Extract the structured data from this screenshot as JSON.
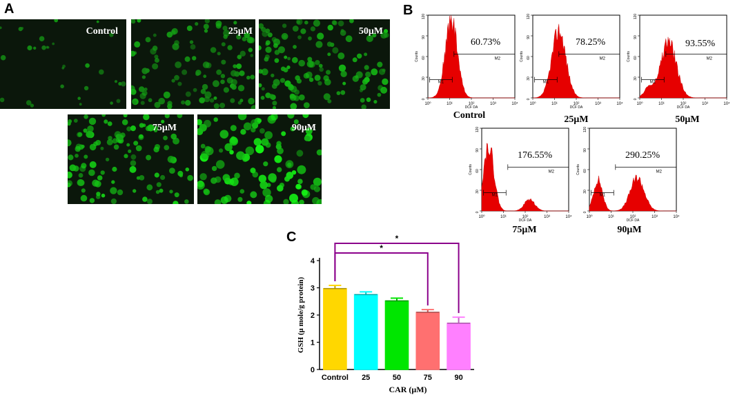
{
  "panel_a": {
    "letter": "A",
    "images": [
      {
        "label": "Control",
        "cells": 30,
        "brightness": 0.45,
        "size": 3,
        "seed": 3
      },
      {
        "label": "25μM",
        "cells": 110,
        "brightness": 0.55,
        "size": 4,
        "seed": 11
      },
      {
        "label": "50μM",
        "cells": 130,
        "brightness": 0.65,
        "size": 4,
        "seed": 17
      },
      {
        "label": "75μM",
        "cells": 120,
        "brightness": 0.8,
        "size": 4,
        "seed": 23
      },
      {
        "label": "90μM",
        "cells": 110,
        "brightness": 1.0,
        "size": 5,
        "seed": 31
      }
    ]
  },
  "panel_b": {
    "letter": "B",
    "axis_label_y": "Counts",
    "axis_label_x": "DCF DA",
    "gate_m1": "M1",
    "gate_m2": "M2",
    "y_ticks": [
      "0",
      "30",
      "60",
      "90",
      "120"
    ],
    "x_ticks": [
      "10⁰",
      "10¹",
      "10²",
      "10³",
      "10⁴"
    ],
    "histograms": [
      {
        "caption": "Control",
        "percent": "60.73%",
        "peaks": [
          {
            "pos": 0.27,
            "height": 0.95,
            "width": 0.07
          }
        ]
      },
      {
        "caption": "25μM",
        "percent": "78.25%",
        "peaks": [
          {
            "pos": 0.3,
            "height": 0.82,
            "width": 0.08
          }
        ]
      },
      {
        "caption": "50μM",
        "percent": "93.55%",
        "peaks": [
          {
            "pos": 0.33,
            "height": 0.68,
            "width": 0.09
          },
          {
            "pos": 0.1,
            "height": 0.12,
            "width": 0.05
          }
        ]
      },
      {
        "caption": "75μM",
        "percent": "176.55%",
        "peaks": [
          {
            "pos": 0.08,
            "height": 0.8,
            "width": 0.06
          },
          {
            "pos": 0.55,
            "height": 0.14,
            "width": 0.06
          }
        ]
      },
      {
        "caption": "90μM",
        "percent": "290.25%",
        "peaks": [
          {
            "pos": 0.1,
            "height": 0.38,
            "width": 0.05
          },
          {
            "pos": 0.55,
            "height": 0.4,
            "width": 0.08
          }
        ]
      }
    ]
  },
  "chart_data": {
    "letter": "C",
    "type": "bar",
    "title": "",
    "xlabel": "CAR (μM)",
    "ylabel": "GSH (μ mole/g protein)",
    "ylim": [
      0,
      4
    ],
    "yticks": [
      0,
      1,
      2,
      3,
      4
    ],
    "categories": [
      "Control",
      "25",
      "50",
      "75",
      "90"
    ],
    "values": [
      2.97,
      2.75,
      2.52,
      2.1,
      1.7
    ],
    "errors": [
      0.12,
      0.1,
      0.1,
      0.1,
      0.22
    ],
    "colors": [
      "#ffd700",
      "#00ffff",
      "#00e600",
      "#ff7070",
      "#ff80ff"
    ],
    "significance": [
      {
        "from": 0,
        "to": 3,
        "label": "*"
      },
      {
        "from": 0,
        "to": 4,
        "label": "*"
      }
    ],
    "significance_color": "#8b008b"
  }
}
